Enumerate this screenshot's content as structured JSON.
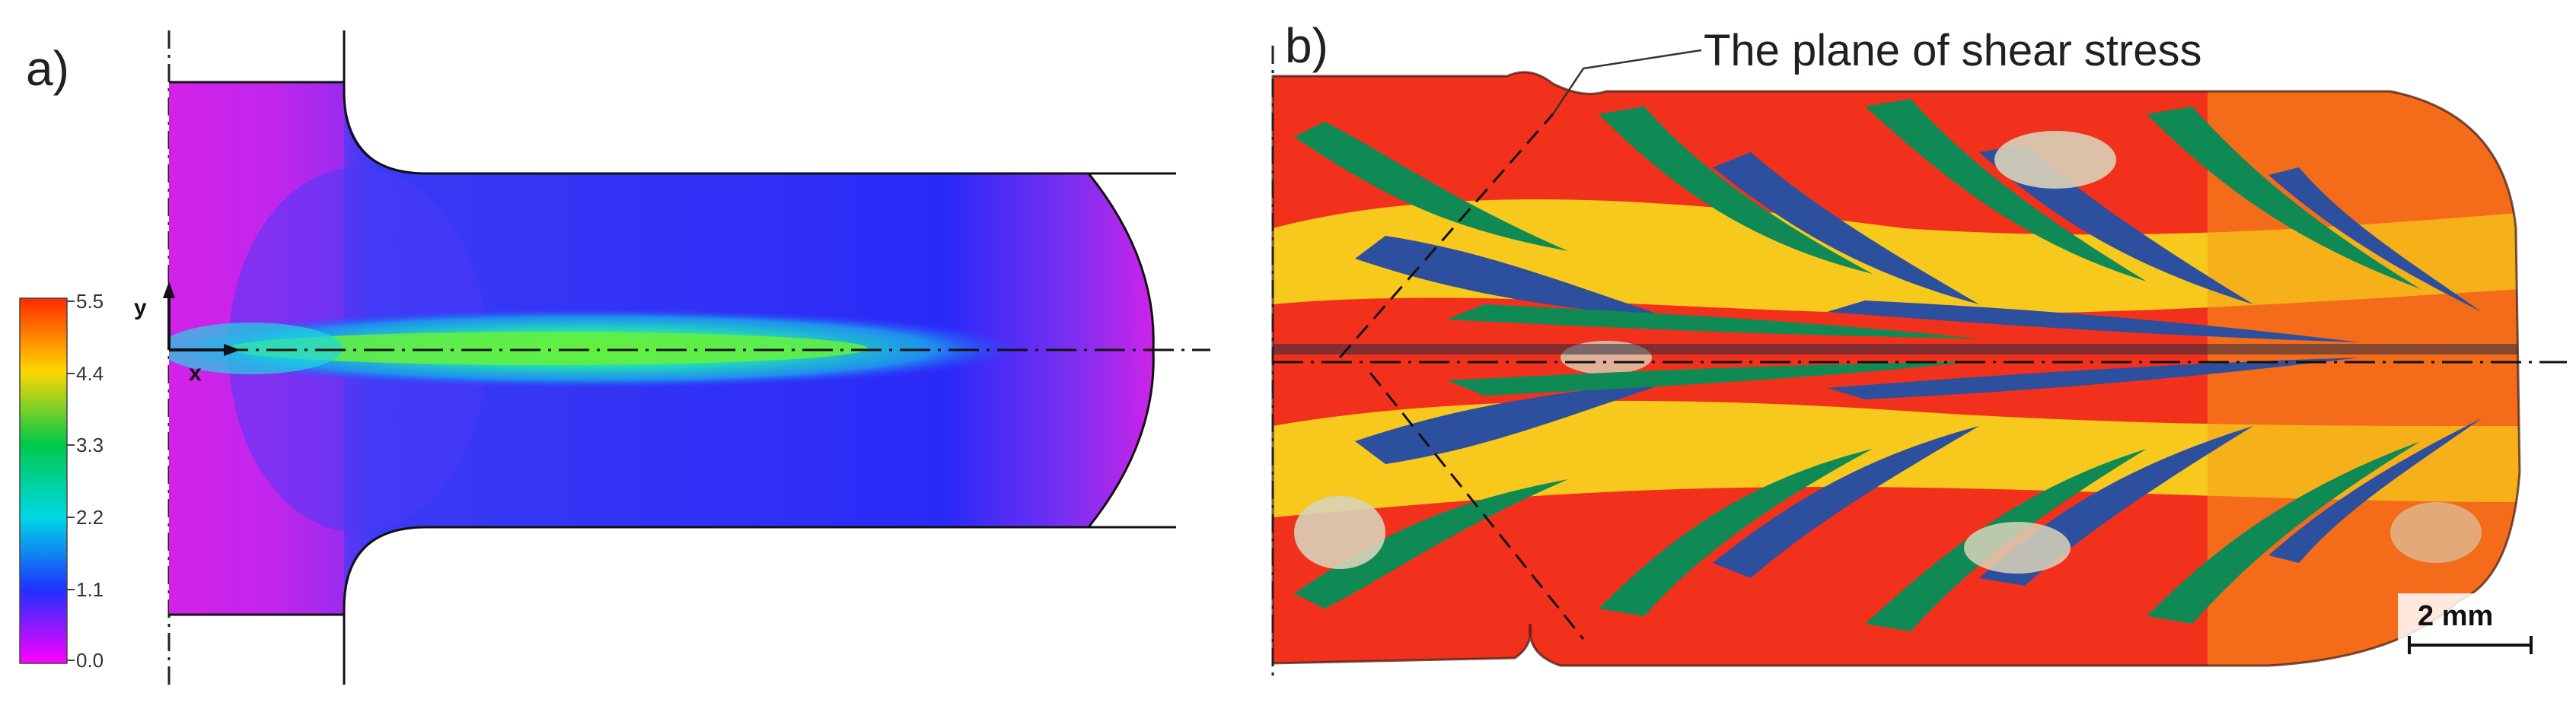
{
  "panel_a": {
    "label": "a)",
    "colorbar": {
      "ticks": [
        "5.5",
        "4.4",
        "3.3",
        "2.2",
        "1.1",
        "0.0"
      ],
      "colors": [
        "#ff2a00",
        "#ffd700",
        "#00c84a",
        "#00d9e6",
        "#2030ff",
        "#ff00ff"
      ]
    },
    "axis_y": "y",
    "axis_x": "x"
  },
  "panel_b": {
    "label": "b)",
    "annotation": "The plane of shear stress",
    "scale_bar": "2 mm",
    "material_colors": [
      "#f2311c",
      "#f7e21c",
      "#0f8a55",
      "#2c4f9e",
      "#d9d2b8",
      "#f5a11c"
    ]
  }
}
